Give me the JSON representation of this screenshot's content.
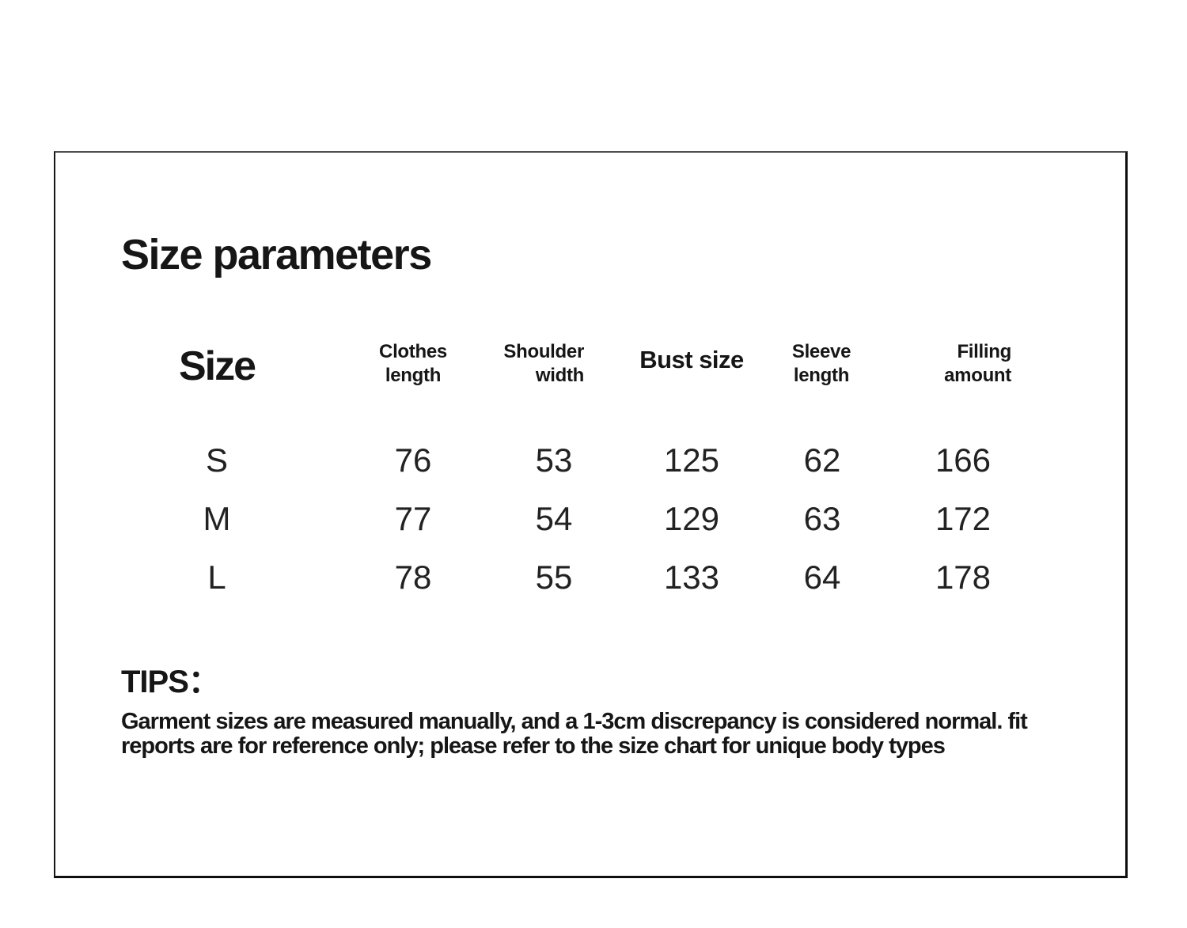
{
  "page": {
    "title": "Size parameters"
  },
  "table": {
    "columns": {
      "size": "Size",
      "clothes_length": "Clothes\nlength",
      "shoulder_width": "Shoulder\nwidth",
      "bust_size": "Bust size",
      "sleeve_length": "Sleeve\nlength",
      "filling_amount": "Filling\namount"
    },
    "rows": [
      {
        "size": "S",
        "clothes_length": "76",
        "shoulder_width": "53",
        "bust_size": "125",
        "sleeve_length": "62",
        "filling_amount": "166"
      },
      {
        "size": "M",
        "clothes_length": "77",
        "shoulder_width": "54",
        "bust_size": "129",
        "sleeve_length": "63",
        "filling_amount": "172"
      },
      {
        "size": "L",
        "clothes_length": "78",
        "shoulder_width": "55",
        "bust_size": "133",
        "sleeve_length": "64",
        "filling_amount": "178"
      }
    ]
  },
  "tips": {
    "heading": "TIPS：",
    "body": "Garment sizes are measured manually, and a 1-3cm discrepancy is considered normal. fit\nreports are for reference only; please refer to the size chart for unique body types"
  }
}
